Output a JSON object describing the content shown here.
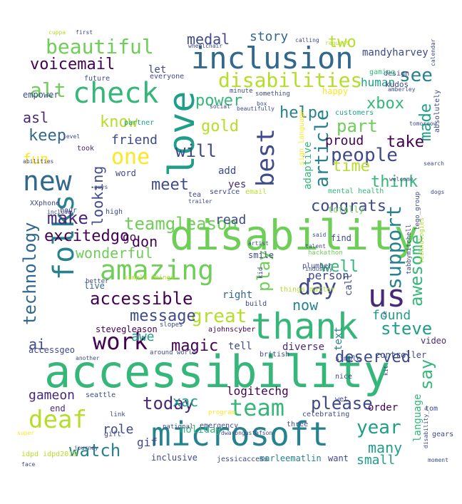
{
  "colors": {
    "background": "#ffffff",
    "palette": [
      "#440154",
      "#482878",
      "#3e4a89",
      "#31688e",
      "#26828e",
      "#1f9e89",
      "#35b779",
      "#6ece58",
      "#b5de2b",
      "#fde725"
    ]
  },
  "words": [
    {
      "text": "accessibility",
      "color": "#35b779"
    },
    {
      "text": "disability",
      "color": "#6ece58"
    },
    {
      "text": "microsoft",
      "color": "#26828e"
    },
    {
      "text": "inclusion",
      "color": "#31688e"
    },
    {
      "text": "thank",
      "color": "#35b779"
    },
    {
      "text": "love",
      "color": "#1f9e89"
    },
    {
      "text": "amazing",
      "color": "#6ece58"
    },
    {
      "text": "folks",
      "color": "#26828e"
    },
    {
      "text": "new",
      "color": "#31688e"
    },
    {
      "text": "check",
      "color": "#35b779"
    },
    {
      "text": "best",
      "color": "#3e4a89"
    },
    {
      "text": "work",
      "color": "#440154"
    },
    {
      "text": "us",
      "color": "#482878"
    },
    {
      "text": "deaf",
      "color": "#b5de2b"
    },
    {
      "text": "team",
      "color": "#35b779"
    },
    {
      "text": "beautiful",
      "color": "#6ece58"
    },
    {
      "text": "disabilities",
      "color": "#b5de2b"
    },
    {
      "text": "one",
      "color": "#fde725"
    },
    {
      "text": "people",
      "color": "#3e4a89"
    },
    {
      "text": "support",
      "color": "#26828e"
    },
    {
      "text": "accessible",
      "color": "#440154"
    },
    {
      "text": "technology",
      "color": "#31688e"
    },
    {
      "text": "article",
      "color": "#26828e"
    },
    {
      "text": "day",
      "color": "#3e4a89"
    },
    {
      "text": "teamgleason",
      "color": "#6ece58"
    },
    {
      "text": "great",
      "color": "#b5de2b"
    },
    {
      "text": "steve",
      "color": "#1f9e89"
    },
    {
      "text": "awesome",
      "color": "#35b779"
    },
    {
      "text": "alt",
      "color": "#6ece58"
    },
    {
      "text": "voicemail",
      "color": "#440154"
    },
    {
      "text": "will",
      "color": "#3e4a89"
    },
    {
      "text": "help",
      "color": "#26828e"
    },
    {
      "text": "part",
      "color": "#6ece58"
    },
    {
      "text": "watch",
      "color": "#26828e"
    },
    {
      "text": "please",
      "color": "#3e4a89"
    },
    {
      "text": "today",
      "color": "#482878"
    },
    {
      "text": "year",
      "color": "#1f9e89"
    },
    {
      "text": "say",
      "color": "#35b779"
    },
    {
      "text": "made",
      "color": "#1f9e89"
    },
    {
      "text": "keep",
      "color": "#31688e"
    },
    {
      "text": "make",
      "color": "#482878"
    },
    {
      "text": "know",
      "color": "#b5de2b"
    },
    {
      "text": "meet",
      "color": "#3e4a89"
    },
    {
      "text": "see",
      "color": "#26828e"
    },
    {
      "text": "xbox",
      "color": "#35b779"
    },
    {
      "text": "magic",
      "color": "#440154"
    },
    {
      "text": "message",
      "color": "#3e4a89"
    },
    {
      "text": "power",
      "color": "#35b779"
    },
    {
      "text": "time",
      "color": "#b5de2b"
    },
    {
      "text": "think",
      "color": "#35b779"
    },
    {
      "text": "take",
      "color": "#440154"
    },
    {
      "text": "congrats",
      "color": "#3e4a89"
    },
    {
      "text": "play",
      "color": "#6ece58"
    },
    {
      "text": "deserved",
      "color": "#3e4a89"
    },
    {
      "text": "many",
      "color": "#1f9e89"
    },
    {
      "text": "gold",
      "color": "#b5de2b"
    },
    {
      "text": "excitedgo",
      "color": "#440154"
    },
    {
      "text": "wonderful",
      "color": "#6ece58"
    },
    {
      "text": "looking",
      "color": "#3e4a89"
    },
    {
      "text": "fun",
      "color": "#fde725"
    },
    {
      "text": "don",
      "color": "#440154"
    },
    {
      "text": "medal",
      "color": "#3e4a89"
    },
    {
      "text": "story",
      "color": "#31688e"
    },
    {
      "text": "two",
      "color": "#b5de2b"
    },
    {
      "text": "asl",
      "color": "#482878"
    },
    {
      "text": "friend",
      "color": "#3e4a89"
    },
    {
      "text": "ai",
      "color": "#3e4a89"
    },
    {
      "text": "awe",
      "color": "#1f9e89"
    },
    {
      "text": "found",
      "color": "#1f9e89"
    },
    {
      "text": "well",
      "color": "#35b779"
    },
    {
      "text": "now",
      "color": "#26828e"
    },
    {
      "text": "read",
      "color": "#3e4a89"
    },
    {
      "text": "proud",
      "color": "#440154"
    },
    {
      "text": "human",
      "color": "#1f9e89"
    },
    {
      "text": "gameon",
      "color": "#482878"
    },
    {
      "text": "xac",
      "color": "#1f9e89"
    },
    {
      "text": "logitechg",
      "color": "#440154"
    },
    {
      "text": "role",
      "color": "#3e4a89"
    },
    {
      "text": "gif",
      "color": "#3e4a89"
    },
    {
      "text": "small",
      "color": "#1f9e89"
    },
    {
      "text": "adaptive",
      "color": "#35b779"
    },
    {
      "text": "mandyharvey",
      "color": "#3e4a89"
    },
    {
      "text": "let",
      "color": "#3e4a89"
    },
    {
      "text": "yes",
      "color": "#482878"
    },
    {
      "text": "add",
      "color": "#3e4a89"
    },
    {
      "text": "person",
      "color": "#3e4a89"
    },
    {
      "text": "go",
      "color": "#440154"
    },
    {
      "text": "right",
      "color": "#31688e"
    },
    {
      "text": "tell",
      "color": "#3e4a89"
    },
    {
      "text": "diverse",
      "color": "#482878"
    },
    {
      "text": "video",
      "color": "#482878"
    },
    {
      "text": "order",
      "color": "#440154"
    },
    {
      "text": "holiday",
      "color": "#35b779"
    },
    {
      "text": "end",
      "color": "#482878"
    },
    {
      "text": "inclusive",
      "color": "#3e4a89"
    },
    {
      "text": "jessicaccess",
      "color": "#3e4a89"
    },
    {
      "text": "marleematlin",
      "color": "#26828e"
    },
    {
      "text": "want",
      "color": "#3e4a89"
    },
    {
      "text": "stevegleason",
      "color": "#440154"
    },
    {
      "text": "ajohnscyber",
      "color": "#440154"
    },
    {
      "text": "accessgeo",
      "color": "#3e4a89"
    },
    {
      "text": "controller",
      "color": "#3e4a89"
    },
    {
      "text": "language",
      "color": "#35b779"
    },
    {
      "text": "call",
      "color": "#3e4a89"
    },
    {
      "text": "text",
      "color": "#26828e"
    },
    {
      "text": "live",
      "color": "#31688e"
    },
    {
      "text": "mental health",
      "color": "#35b779"
    },
    {
      "text": "find",
      "color": "#3e4a89"
    },
    {
      "text": "totally",
      "color": "#6ece58"
    },
    {
      "text": "smile",
      "color": "#3e4a89"
    },
    {
      "text": "word",
      "color": "#3e4a89"
    },
    {
      "text": "hour",
      "color": "#3e4a89"
    },
    {
      "text": "empower",
      "color": "#3e4a89"
    },
    {
      "text": "took",
      "color": "#482878"
    },
    {
      "text": "future",
      "color": "#3e4a89"
    },
    {
      "text": "everyone",
      "color": "#3e4a89"
    },
    {
      "text": "design",
      "color": "#3e4a89"
    },
    {
      "text": "kudos",
      "color": "#3e4a89"
    },
    {
      "text": "happy",
      "color": "#fde725"
    },
    {
      "text": "gaming",
      "color": "#35b779"
    },
    {
      "text": "absolutely",
      "color": "#3e4a89"
    },
    {
      "text": "customers",
      "color": "#1f9e89"
    },
    {
      "text": "partner",
      "color": "#1f9e89"
    },
    {
      "text": "dogs",
      "color": "#3e4a89"
    },
    {
      "text": "minute",
      "color": "#3e4a89"
    },
    {
      "text": "something",
      "color": "#3e4a89"
    },
    {
      "text": "hackathon",
      "color": "#6ece58"
    },
    {
      "text": "cuppa",
      "color": "#b5de2b"
    },
    {
      "text": "first",
      "color": "#3e4a89"
    },
    {
      "text": "request",
      "color": "#b5de2b"
    },
    {
      "text": "amberley",
      "color": "#3e4a89"
    },
    {
      "text": "tea",
      "color": "#3e4a89"
    },
    {
      "text": "high",
      "color": "#3e4a89"
    },
    {
      "text": "service",
      "color": "#3e4a89"
    },
    {
      "text": "email",
      "color": "#b5de2b"
    },
    {
      "text": "XXphone",
      "color": "#3e4a89"
    },
    {
      "text": "plumber",
      "color": "#3e4a89"
    },
    {
      "text": "better",
      "color": "#3e4a89"
    },
    {
      "text": "simple things",
      "color": "#b5de2b"
    },
    {
      "text": "things matter",
      "color": "#b5de2b"
    },
    {
      "text": "around world",
      "color": "#3e4a89"
    },
    {
      "text": "slopes",
      "color": "#3e4a89"
    },
    {
      "text": "build",
      "color": "#3e4a89"
    },
    {
      "text": "nice",
      "color": "#3e4a89"
    },
    {
      "text": "seattle",
      "color": "#3e4a89"
    },
    {
      "text": "emergency",
      "color": "#3e4a89"
    },
    {
      "text": "celebrating",
      "color": "#3e4a89"
    },
    {
      "text": "program",
      "color": "#fde725"
    },
    {
      "text": "three",
      "color": "#3e4a89"
    },
    {
      "text": "gift",
      "color": "#3e4a89"
    },
    {
      "text": "link",
      "color": "#3e4a89"
    },
    {
      "text": "idpd idpd2019",
      "color": "#b5de2b"
    },
    {
      "text": "journey",
      "color": "#3e4a89"
    },
    {
      "text": "national",
      "color": "#3e4a89"
    },
    {
      "text": "face",
      "color": "#3e4a89"
    },
    {
      "text": "moment",
      "color": "#3e4a89"
    },
    {
      "text": "gears",
      "color": "#3e4a89"
    },
    {
      "text": "wet",
      "color": "#3e4a89"
    },
    {
      "text": "simple",
      "color": "#3e4a89"
    },
    {
      "text": "british",
      "color": "#3e4a89"
    },
    {
      "text": "another",
      "color": "#3e4a89"
    },
    {
      "text": "calendar",
      "color": "#3e4a89"
    },
    {
      "text": "tomorrow",
      "color": "#3e4a89"
    },
    {
      "text": "search",
      "color": "#3e4a89"
    },
    {
      "text": "welcome",
      "color": "#3e4a89"
    },
    {
      "text": "social",
      "color": "#3e4a89"
    },
    {
      "text": "box",
      "color": "#3e4a89"
    },
    {
      "text": "beautifully",
      "color": "#3e4a89"
    },
    {
      "text": "trailer",
      "color": "#3e4a89"
    },
    {
      "text": "guys",
      "color": "#3e4a89"
    },
    {
      "text": "include",
      "color": "#3e4a89"
    },
    {
      "text": "talent",
      "color": "#3e4a89"
    },
    {
      "text": "industry",
      "color": "#3e4a89"
    },
    {
      "text": "said",
      "color": "#3e4a89"
    },
    {
      "text": "kid",
      "color": "#3e4a89"
    },
    {
      "text": "artist",
      "color": "#3e4a89"
    },
    {
      "text": "wheelchair",
      "color": "#3e4a89"
    },
    {
      "text": "calling",
      "color": "#3e4a89"
    },
    {
      "text": "sign language",
      "color": "#fde725"
    },
    {
      "text": "level",
      "color": "#3e4a89"
    },
    {
      "text": "tabbymitchell",
      "color": "#3e4a89"
    },
    {
      "text": "technologies",
      "color": "#b5de2b"
    },
    {
      "text": "lego_group",
      "color": "#3e4a89"
    },
    {
      "text": "kit",
      "color": "#3e4a89"
    },
    {
      "text": "re",
      "color": "#3e4a89"
    },
    {
      "text": "tom",
      "color": "#3e4a89"
    },
    {
      "text": "disability_n",
      "color": "#3e4a89"
    },
    {
      "text": "dwarongustafson",
      "color": "#3e4a89"
    },
    {
      "text": "abilities",
      "color": "#3e4a89"
    },
    {
      "text": "super",
      "color": "#fde725"
    }
  ]
}
